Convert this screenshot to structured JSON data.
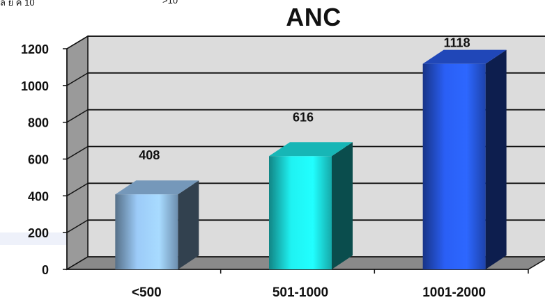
{
  "header": {
    "title": "ANC",
    "fragment_left": "ล ย ค 10",
    "fragment_right": ">10"
  },
  "chart_data": {
    "type": "bar",
    "title": "ANC",
    "categories": [
      "<500",
      "501-1000",
      "1001-2000"
    ],
    "values": [
      408,
      616,
      1118
    ],
    "data_labels": [
      "408",
      "616",
      "1118"
    ],
    "colors": [
      "#9ccbf8",
      "#1ff2f2",
      "#2a5ff5"
    ],
    "ylim": [
      0,
      1200
    ],
    "yticks": [
      0,
      200,
      400,
      600,
      800,
      1000,
      1200
    ],
    "grid": true,
    "three_d": true,
    "legend": "none",
    "xlabel": "",
    "ylabel": ""
  }
}
